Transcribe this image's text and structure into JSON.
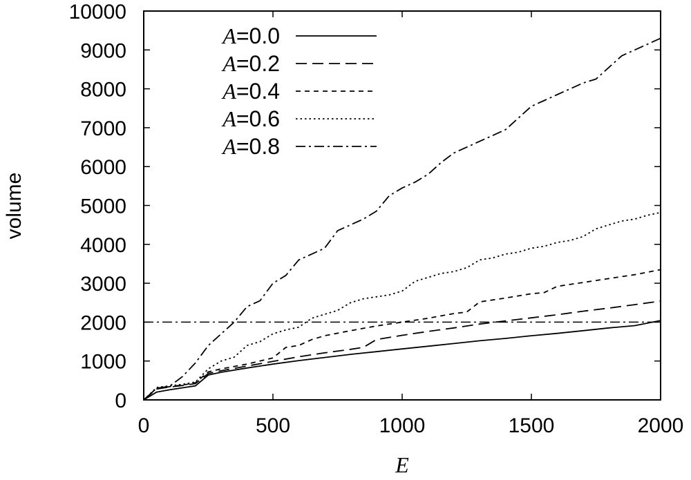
{
  "chart_data": {
    "type": "line",
    "title": "",
    "xlabel": "E",
    "ylabel": "volume",
    "xlim": [
      0,
      2000
    ],
    "ylim": [
      0,
      10000
    ],
    "xticks": [
      0,
      500,
      1000,
      1500,
      2000
    ],
    "yticks": [
      0,
      1000,
      2000,
      3000,
      4000,
      5000,
      6000,
      7000,
      8000,
      9000,
      10000
    ],
    "grid": false,
    "legend_position": "top-left",
    "series": [
      {
        "name": "A=0.0",
        "symbol": "A",
        "value": "=0.0",
        "dash": "solid",
        "x": [
          0,
          50,
          100,
          150,
          200,
          250,
          300,
          400,
          500,
          600,
          700,
          800,
          900,
          1000,
          1100,
          1200,
          1300,
          1400,
          1500,
          1600,
          1700,
          1800,
          1900,
          2000
        ],
        "y": [
          0,
          200,
          260,
          310,
          360,
          640,
          710,
          820,
          920,
          1010,
          1090,
          1170,
          1240,
          1310,
          1380,
          1450,
          1520,
          1580,
          1650,
          1710,
          1780,
          1850,
          1910,
          2040
        ]
      },
      {
        "name": "A=0.2",
        "symbol": "A",
        "value": "=0.2",
        "dash": "dashed",
        "x": [
          0,
          50,
          100,
          150,
          200,
          250,
          300,
          400,
          500,
          600,
          700,
          800,
          850,
          900,
          1000,
          1100,
          1200,
          1300,
          1400,
          1500,
          1600,
          1700,
          1800,
          1900,
          2000
        ],
        "y": [
          0,
          280,
          330,
          370,
          420,
          680,
          750,
          870,
          990,
          1110,
          1210,
          1300,
          1350,
          1550,
          1660,
          1760,
          1850,
          1950,
          2030,
          2110,
          2190,
          2280,
          2360,
          2450,
          2540
        ]
      },
      {
        "name": "A=0.4",
        "symbol": "A",
        "value": "=0.4",
        "dash": "short-dashed",
        "x": [
          0,
          50,
          100,
          150,
          200,
          250,
          300,
          400,
          500,
          550,
          600,
          650,
          700,
          800,
          900,
          1000,
          1100,
          1200,
          1250,
          1300,
          1400,
          1500,
          1550,
          1600,
          1700,
          1800,
          1900,
          2000
        ],
        "y": [
          0,
          300,
          340,
          380,
          440,
          720,
          800,
          920,
          1080,
          1350,
          1400,
          1550,
          1650,
          1780,
          1900,
          2000,
          2100,
          2220,
          2260,
          2520,
          2620,
          2730,
          2760,
          2920,
          3020,
          3120,
          3220,
          3350
        ]
      },
      {
        "name": "A=0.6",
        "symbol": "A",
        "value": "=0.6",
        "dash": "dotted",
        "x": [
          0,
          50,
          100,
          150,
          200,
          250,
          300,
          350,
          400,
          450,
          500,
          550,
          600,
          650,
          700,
          750,
          800,
          850,
          900,
          950,
          1000,
          1050,
          1100,
          1150,
          1200,
          1250,
          1300,
          1350,
          1400,
          1450,
          1500,
          1550,
          1600,
          1650,
          1700,
          1750,
          1800,
          1850,
          1900,
          1950,
          2000
        ],
        "y": [
          0,
          320,
          360,
          400,
          460,
          800,
          1000,
          1100,
          1400,
          1500,
          1700,
          1800,
          1870,
          2100,
          2200,
          2300,
          2500,
          2600,
          2650,
          2700,
          2800,
          3050,
          3150,
          3250,
          3300,
          3400,
          3600,
          3650,
          3750,
          3800,
          3900,
          3950,
          4050,
          4100,
          4200,
          4400,
          4500,
          4600,
          4650,
          4750,
          4820
        ]
      },
      {
        "name": "A=0.8",
        "symbol": "A",
        "value": "=0.8",
        "dash": "dash-dot",
        "x": [
          0,
          50,
          100,
          150,
          200,
          250,
          300,
          350,
          400,
          450,
          500,
          550,
          600,
          650,
          700,
          750,
          800,
          850,
          900,
          950,
          1000,
          1050,
          1100,
          1150,
          1200,
          1250,
          1300,
          1350,
          1400,
          1450,
          1500,
          1550,
          1600,
          1650,
          1700,
          1750,
          1800,
          1850,
          1900,
          1950,
          2000
        ],
        "y": [
          0,
          300,
          350,
          600,
          950,
          1400,
          1700,
          2000,
          2400,
          2550,
          3000,
          3200,
          3600,
          3750,
          3900,
          4350,
          4500,
          4650,
          4850,
          5250,
          5450,
          5600,
          5800,
          6100,
          6350,
          6500,
          6650,
          6800,
          6950,
          7250,
          7550,
          7700,
          7850,
          8000,
          8150,
          8250,
          8550,
          8850,
          9000,
          9150,
          9300
        ]
      }
    ],
    "reference_lines": [
      {
        "type": "horizontal",
        "y": 2000,
        "dash": "dash-dot"
      }
    ]
  }
}
